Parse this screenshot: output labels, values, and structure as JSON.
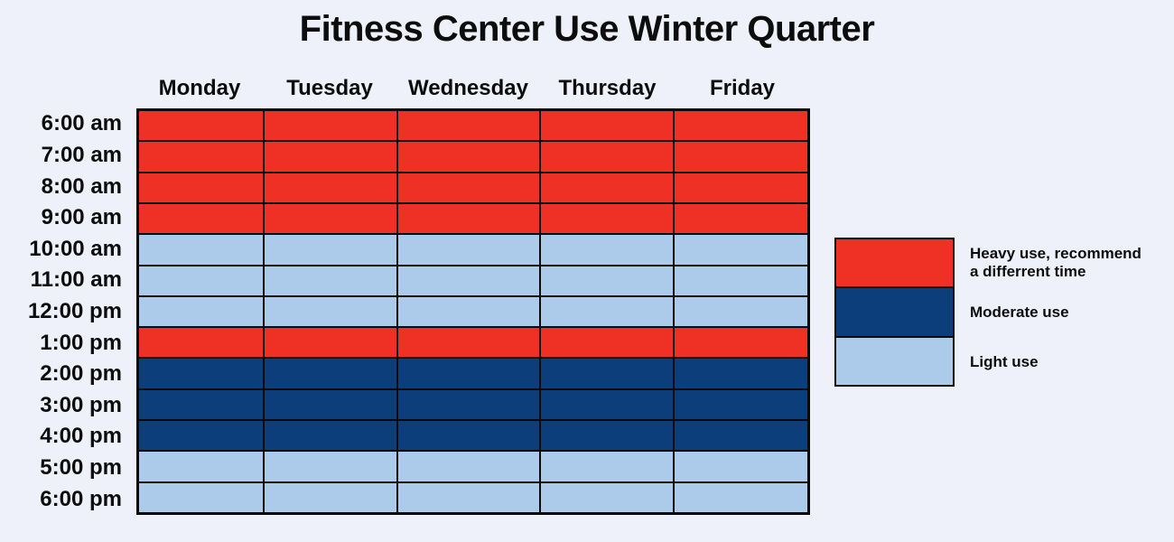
{
  "title": "Fitness Center Use Winter Quarter",
  "colors": {
    "background": "#eef1fa",
    "grid_line": "#0a0a0a",
    "text": "#0d0d0d",
    "heavy": "#ee3124",
    "moderate": "#0c3e7c",
    "light": "#accbea"
  },
  "chart_data": {
    "type": "heatmap",
    "title": "Fitness Center Use Winter Quarter",
    "columns": [
      "Monday",
      "Tuesday",
      "Wednesday",
      "Thursday",
      "Friday"
    ],
    "rows": [
      "6:00 am",
      "7:00 am",
      "8:00 am",
      "9:00 am",
      "10:00 am",
      "11:00 am",
      "12:00 pm",
      "1:00 pm",
      "2:00 pm",
      "3:00 pm",
      "4:00 pm",
      "5:00 pm",
      "6:00 pm"
    ],
    "levels": {
      "heavy": {
        "color": "#ee3124",
        "label_lines": [
          "Heavy use, recommend",
          "a differrent time"
        ]
      },
      "moderate": {
        "color": "#0c3e7c",
        "label_lines": [
          "Moderate use"
        ]
      },
      "light": {
        "color": "#accbea",
        "label_lines": [
          "Light use"
        ]
      }
    },
    "legend_order": [
      "heavy",
      "moderate",
      "light"
    ],
    "legend_position": "right",
    "grid": "on",
    "values": [
      [
        "heavy",
        "heavy",
        "heavy",
        "heavy",
        "heavy"
      ],
      [
        "heavy",
        "heavy",
        "heavy",
        "heavy",
        "heavy"
      ],
      [
        "heavy",
        "heavy",
        "heavy",
        "heavy",
        "heavy"
      ],
      [
        "heavy",
        "heavy",
        "heavy",
        "heavy",
        "heavy"
      ],
      [
        "light",
        "light",
        "light",
        "light",
        "light"
      ],
      [
        "light",
        "light",
        "light",
        "light",
        "light"
      ],
      [
        "light",
        "light",
        "light",
        "light",
        "light"
      ],
      [
        "heavy",
        "heavy",
        "heavy",
        "heavy",
        "heavy"
      ],
      [
        "moderate",
        "moderate",
        "moderate",
        "moderate",
        "moderate"
      ],
      [
        "moderate",
        "moderate",
        "moderate",
        "moderate",
        "moderate"
      ],
      [
        "moderate",
        "moderate",
        "moderate",
        "moderate",
        "moderate"
      ],
      [
        "light",
        "light",
        "light",
        "light",
        "light"
      ],
      [
        "light",
        "light",
        "light",
        "light",
        "light"
      ]
    ]
  }
}
